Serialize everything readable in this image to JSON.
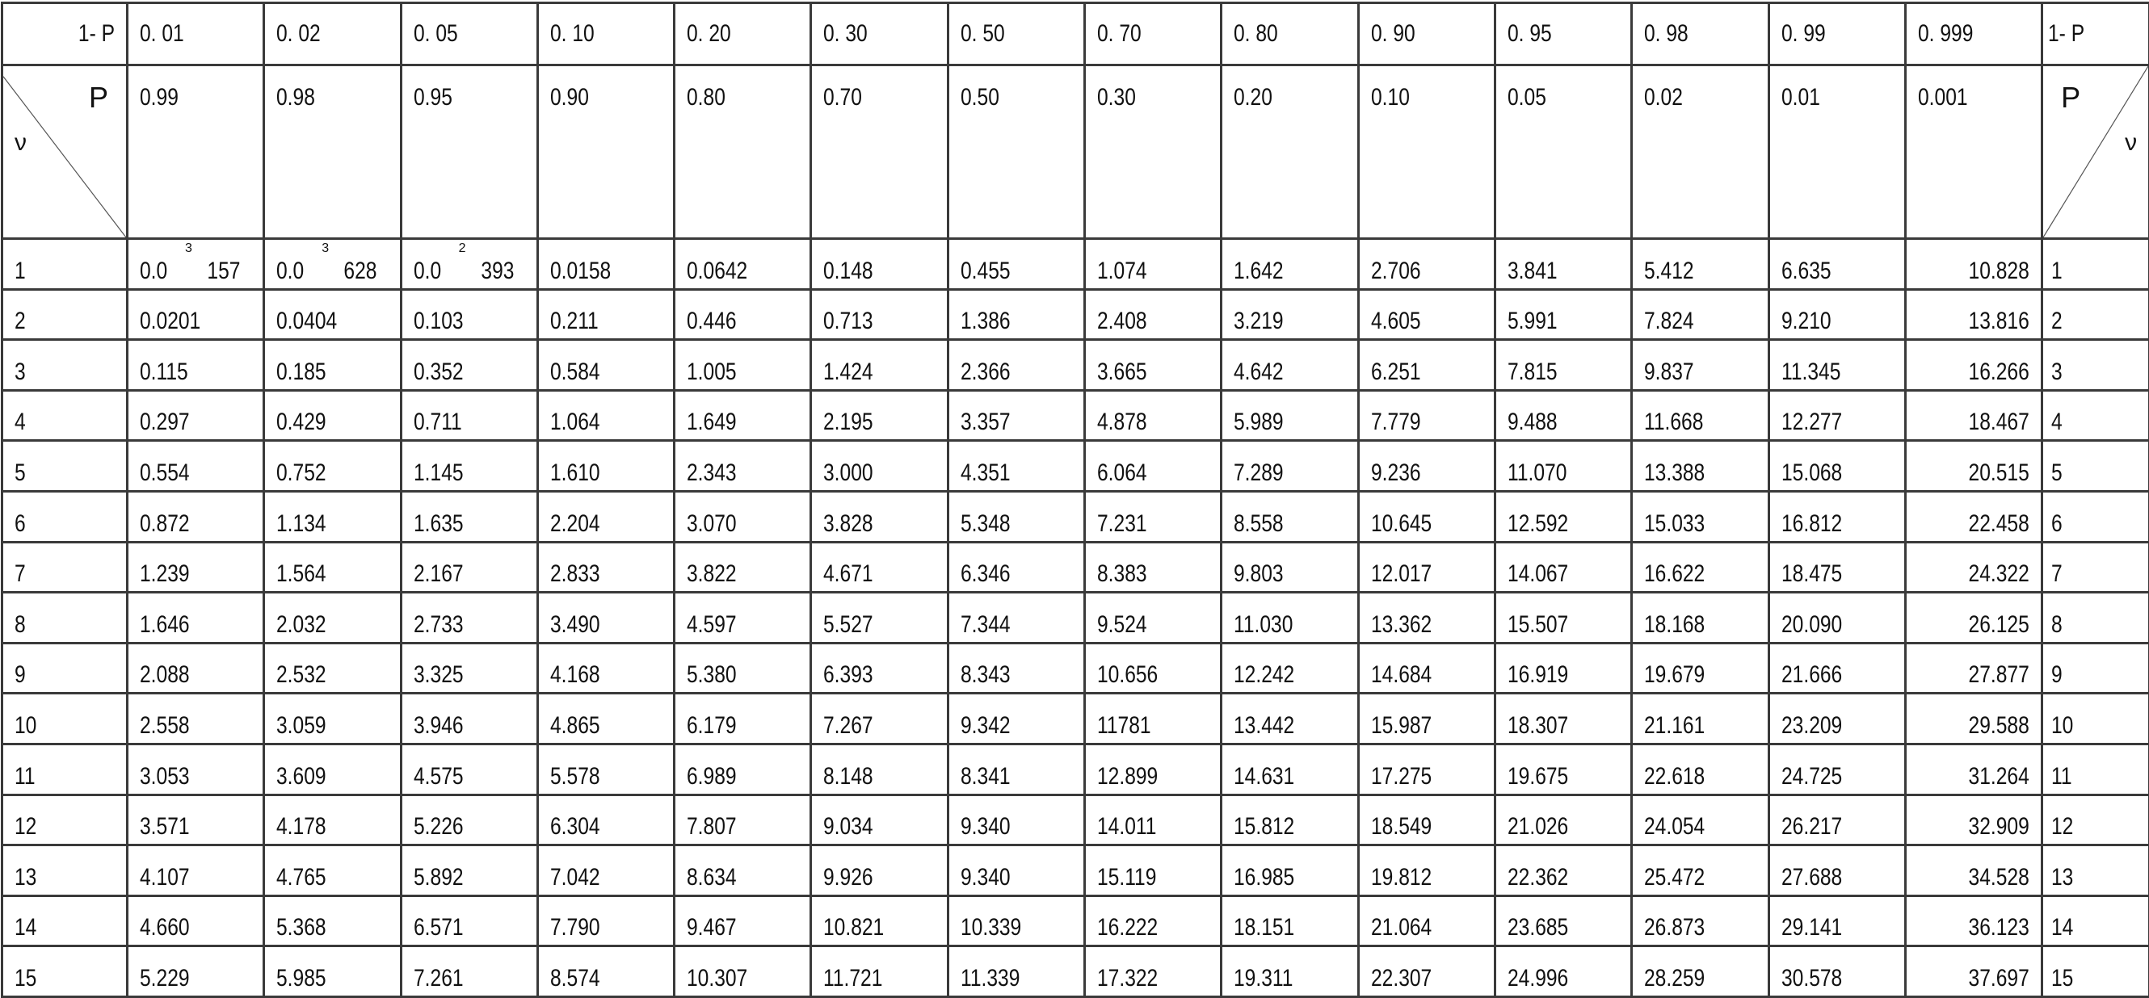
{
  "header": {
    "one_minus_p_label": "1- P",
    "p_label": "P",
    "nu_label": "ν",
    "one_minus_p": [
      "0. 01",
      "0. 02",
      "0. 05",
      "0. 10",
      "0. 20",
      "0. 30",
      "0. 50",
      "0. 70",
      "0. 80",
      "0. 90",
      "0. 95",
      "0. 98",
      "0. 99",
      "0. 999"
    ],
    "p": [
      "0.99",
      "0.98",
      "0.95",
      "0.90",
      "0.80",
      "0.70",
      "0.50",
      "0.30",
      "0.20",
      "0.10",
      "0.05",
      "0.02",
      "0.01",
      "0.001"
    ]
  },
  "rows": [
    {
      "nu": "1",
      "values": [
        {
          "base": "0.0",
          "exp": "3",
          "tail": "157"
        },
        {
          "base": "0.0",
          "exp": "3",
          "tail": "628"
        },
        {
          "base": "0.0",
          "exp": "2",
          "tail": "393"
        },
        "0.0158",
        "0.0642",
        "0.148",
        "0.455",
        "1.074",
        "1.642",
        "2.706",
        "3.841",
        "5.412",
        "6.635",
        "10.828"
      ]
    },
    {
      "nu": "2",
      "values": [
        "0.0201",
        "0.0404",
        "0.103",
        "0.211",
        "0.446",
        "0.713",
        "1.386",
        "2.408",
        "3.219",
        "4.605",
        "5.991",
        "7.824",
        "9.210",
        "13.816"
      ]
    },
    {
      "nu": "3",
      "values": [
        "0.115",
        "0.185",
        "0.352",
        "0.584",
        "1.005",
        "1.424",
        "2.366",
        "3.665",
        "4.642",
        "6.251",
        "7.815",
        "9.837",
        "11.345",
        "16.266"
      ]
    },
    {
      "nu": "4",
      "values": [
        "0.297",
        "0.429",
        "0.711",
        "1.064",
        "1.649",
        "2.195",
        "3.357",
        "4.878",
        "5.989",
        "7.779",
        "9.488",
        "11.668",
        "12.277",
        "18.467"
      ]
    },
    {
      "nu": "5",
      "values": [
        "0.554",
        "0.752",
        "1.145",
        "1.610",
        "2.343",
        "3.000",
        "4.351",
        "6.064",
        "7.289",
        "9.236",
        "11.070",
        "13.388",
        "15.068",
        "20.515"
      ]
    },
    {
      "nu": "6",
      "values": [
        "0.872",
        "1.134",
        "1.635",
        "2.204",
        "3.070",
        "3.828",
        "5.348",
        "7.231",
        "8.558",
        "10.645",
        "12.592",
        "15.033",
        "16.812",
        "22.458"
      ]
    },
    {
      "nu": "7",
      "values": [
        "1.239",
        "1.564",
        "2.167",
        "2.833",
        "3.822",
        "4.671",
        "6.346",
        "8.383",
        "9.803",
        "12.017",
        "14.067",
        "16.622",
        "18.475",
        "24.322"
      ]
    },
    {
      "nu": "8",
      "values": [
        "1.646",
        "2.032",
        "2.733",
        "3.490",
        "4.597",
        "5.527",
        "7.344",
        "9.524",
        "11.030",
        "13.362",
        "15.507",
        "18.168",
        "20.090",
        "26.125"
      ]
    },
    {
      "nu": "9",
      "values": [
        "2.088",
        "2.532",
        "3.325",
        "4.168",
        "5.380",
        "6.393",
        "8.343",
        "10.656",
        "12.242",
        "14.684",
        "16.919",
        "19.679",
        "21.666",
        "27.877"
      ]
    },
    {
      "nu": "10",
      "values": [
        "2.558",
        "3.059",
        "3.946",
        "4.865",
        "6.179",
        "7.267",
        "9.342",
        "11781",
        "13.442",
        "15.987",
        "18.307",
        "21.161",
        "23.209",
        "29.588"
      ]
    },
    {
      "nu": "11",
      "values": [
        "3.053",
        "3.609",
        "4.575",
        "5.578",
        "6.989",
        "8.148",
        "8.341",
        "12.899",
        "14.631",
        "17.275",
        "19.675",
        "22.618",
        "24.725",
        "31.264"
      ]
    },
    {
      "nu": "12",
      "values": [
        "3.571",
        "4.178",
        "5.226",
        "6.304",
        "7.807",
        "9.034",
        "9.340",
        "14.011",
        "15.812",
        "18.549",
        "21.026",
        "24.054",
        "26.217",
        "32.909"
      ]
    },
    {
      "nu": "13",
      "values": [
        "4.107",
        "4.765",
        "5.892",
        "7.042",
        "8.634",
        "9.926",
        "9.340",
        "15.119",
        "16.985",
        "19.812",
        "22.362",
        "25.472",
        "27.688",
        "34.528"
      ]
    },
    {
      "nu": "14",
      "values": [
        "4.660",
        "5.368",
        "6.571",
        "7.790",
        "9.467",
        "10.821",
        "10.339",
        "16.222",
        "18.151",
        "21.064",
        "23.685",
        "26.873",
        "29.141",
        "36.123"
      ]
    },
    {
      "nu": "15",
      "values": [
        "5.229",
        "5.985",
        "7.261",
        "8.574",
        "10.307",
        "11.721",
        "11.339",
        "17.322",
        "19.311",
        "22.307",
        "24.996",
        "28.259",
        "30.578",
        "37.697"
      ]
    }
  ]
}
